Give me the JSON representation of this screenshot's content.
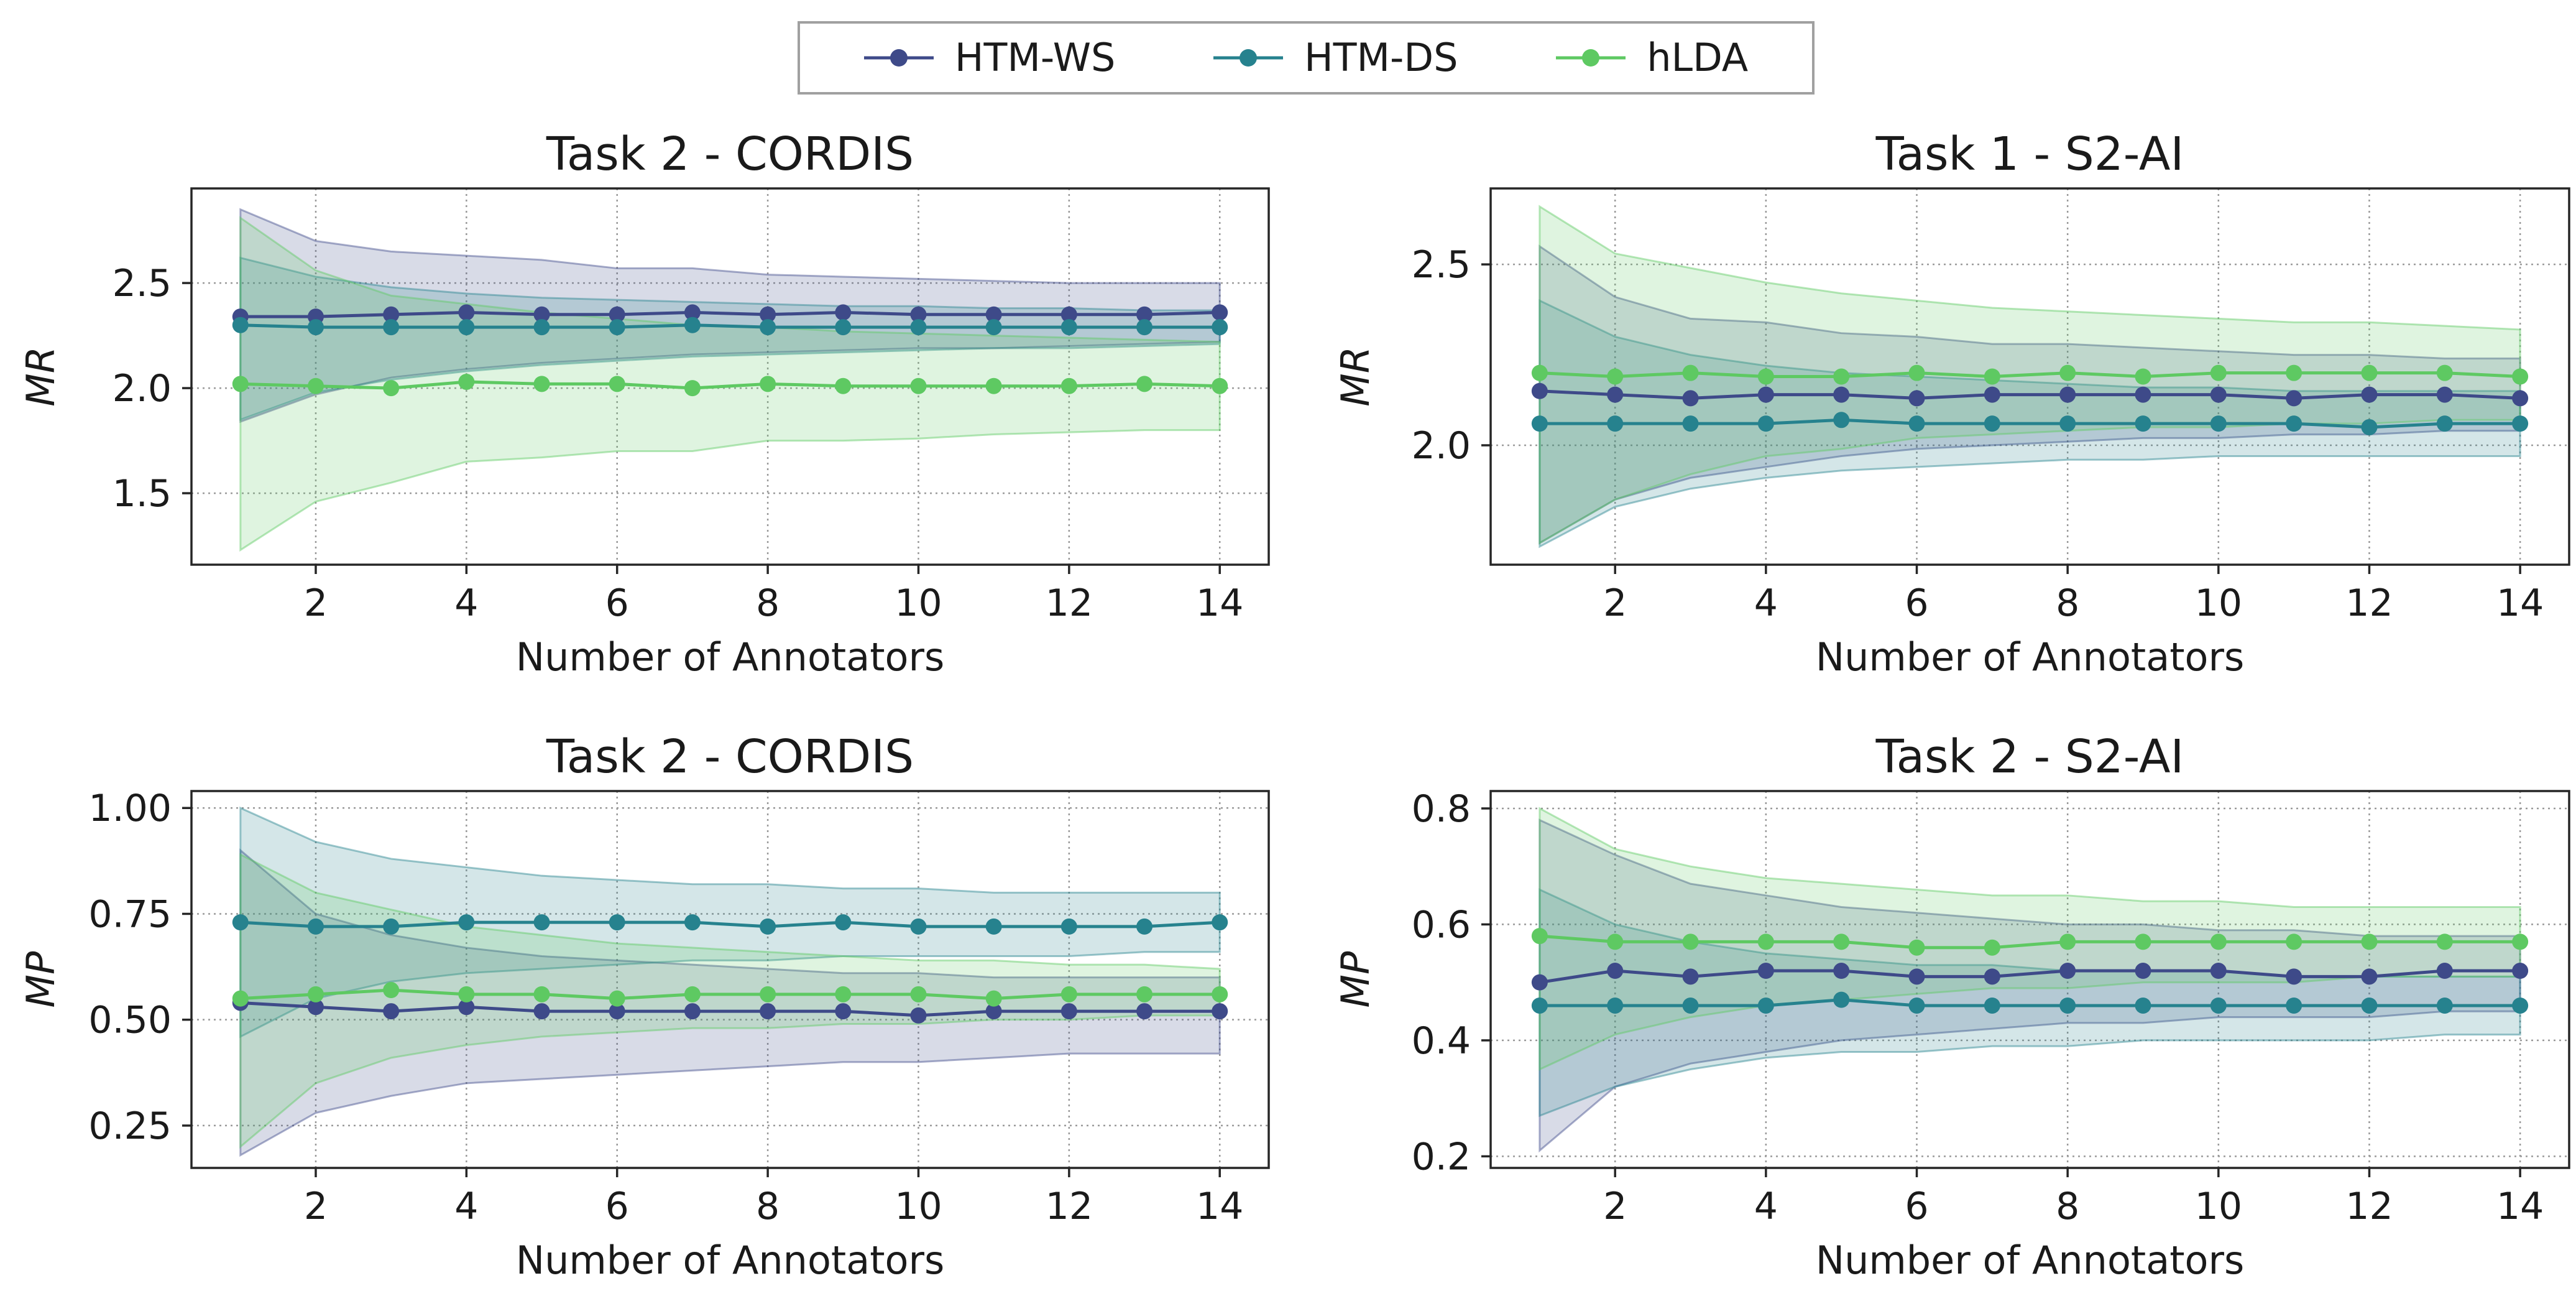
{
  "legend": [
    {
      "label": "HTM-WS",
      "color": "#3e4a89"
    },
    {
      "label": "HTM-DS",
      "color": "#26828e"
    },
    {
      "label": "hLDA",
      "color": "#5ec962"
    }
  ],
  "chart_data": [
    {
      "type": "line",
      "title": "Task 2 - CORDIS",
      "xlabel": "Number of Annotators",
      "ylabel": "MR",
      "xlim": [
        0.35,
        14.65
      ],
      "ylim": [
        1.16,
        2.95
      ],
      "xticks": [
        2,
        4,
        6,
        8,
        10,
        12,
        14
      ],
      "yticks": [
        "1.5",
        "2.0",
        "2.5"
      ],
      "grid": true,
      "x": [
        1,
        2,
        3,
        4,
        5,
        6,
        7,
        8,
        9,
        10,
        11,
        12,
        13,
        14
      ],
      "series": [
        {
          "name": "HTM-WS",
          "color": "#3e4a89",
          "values": [
            2.34,
            2.34,
            2.35,
            2.36,
            2.35,
            2.35,
            2.36,
            2.35,
            2.36,
            2.35,
            2.35,
            2.35,
            2.35,
            2.36
          ],
          "lower": [
            1.84,
            1.97,
            2.05,
            2.09,
            2.12,
            2.14,
            2.16,
            2.17,
            2.18,
            2.19,
            2.19,
            2.2,
            2.21,
            2.22
          ],
          "upper": [
            2.85,
            2.7,
            2.65,
            2.63,
            2.61,
            2.57,
            2.57,
            2.54,
            2.53,
            2.52,
            2.51,
            2.5,
            2.5,
            2.5
          ]
        },
        {
          "name": "HTM-DS",
          "color": "#26828e",
          "values": [
            2.3,
            2.29,
            2.29,
            2.29,
            2.29,
            2.29,
            2.3,
            2.29,
            2.29,
            2.29,
            2.29,
            2.29,
            2.29,
            2.29
          ],
          "lower": [
            1.85,
            1.98,
            2.04,
            2.08,
            2.11,
            2.13,
            2.15,
            2.16,
            2.17,
            2.18,
            2.19,
            2.19,
            2.2,
            2.21
          ],
          "upper": [
            2.62,
            2.53,
            2.48,
            2.45,
            2.43,
            2.42,
            2.41,
            2.4,
            2.39,
            2.39,
            2.38,
            2.38,
            2.37,
            2.37
          ]
        },
        {
          "name": "hLDA",
          "color": "#5ec962",
          "values": [
            2.02,
            2.01,
            2.0,
            2.03,
            2.02,
            2.02,
            2.0,
            2.02,
            2.01,
            2.01,
            2.01,
            2.01,
            2.02,
            2.01
          ],
          "lower": [
            1.23,
            1.46,
            1.55,
            1.65,
            1.67,
            1.7,
            1.7,
            1.75,
            1.75,
            1.76,
            1.78,
            1.79,
            1.8,
            1.8
          ],
          "upper": [
            2.81,
            2.56,
            2.44,
            2.4,
            2.36,
            2.33,
            2.3,
            2.29,
            2.27,
            2.26,
            2.25,
            2.24,
            2.23,
            2.22
          ]
        }
      ]
    },
    {
      "type": "line",
      "title": "Task 1 - S2-AI",
      "xlabel": "Number of Annotators",
      "ylabel": "MR",
      "xlim": [
        0.35,
        14.65
      ],
      "ylim": [
        1.67,
        2.71
      ],
      "xticks": [
        2,
        4,
        6,
        8,
        10,
        12,
        14
      ],
      "yticks": [
        "2.0",
        "2.5"
      ],
      "grid": true,
      "x": [
        1,
        2,
        3,
        4,
        5,
        6,
        7,
        8,
        9,
        10,
        11,
        12,
        13,
        14
      ],
      "series": [
        {
          "name": "HTM-WS",
          "color": "#3e4a89",
          "values": [
            2.15,
            2.14,
            2.13,
            2.14,
            2.14,
            2.13,
            2.14,
            2.14,
            2.14,
            2.14,
            2.13,
            2.14,
            2.14,
            2.13
          ],
          "lower": [
            1.73,
            1.85,
            1.91,
            1.94,
            1.97,
            1.99,
            2.0,
            2.01,
            2.02,
            2.02,
            2.03,
            2.03,
            2.04,
            2.04
          ],
          "upper": [
            2.55,
            2.41,
            2.35,
            2.34,
            2.31,
            2.3,
            2.28,
            2.28,
            2.27,
            2.26,
            2.25,
            2.25,
            2.24,
            2.24
          ]
        },
        {
          "name": "HTM-DS",
          "color": "#26828e",
          "values": [
            2.06,
            2.06,
            2.06,
            2.06,
            2.07,
            2.06,
            2.06,
            2.06,
            2.06,
            2.06,
            2.06,
            2.05,
            2.06,
            2.06
          ],
          "lower": [
            1.72,
            1.83,
            1.88,
            1.91,
            1.93,
            1.94,
            1.95,
            1.96,
            1.96,
            1.97,
            1.97,
            1.97,
            1.97,
            1.97
          ],
          "upper": [
            2.4,
            2.3,
            2.25,
            2.22,
            2.2,
            2.19,
            2.18,
            2.17,
            2.16,
            2.16,
            2.15,
            2.15,
            2.15,
            2.15
          ]
        },
        {
          "name": "hLDA",
          "color": "#5ec962",
          "values": [
            2.2,
            2.19,
            2.2,
            2.19,
            2.19,
            2.2,
            2.19,
            2.2,
            2.19,
            2.2,
            2.2,
            2.2,
            2.2,
            2.19
          ],
          "lower": [
            1.73,
            1.85,
            1.92,
            1.97,
            1.99,
            2.02,
            2.03,
            2.04,
            2.05,
            2.05,
            2.06,
            2.06,
            2.07,
            2.07
          ],
          "upper": [
            2.66,
            2.53,
            2.49,
            2.45,
            2.42,
            2.4,
            2.38,
            2.37,
            2.36,
            2.35,
            2.34,
            2.34,
            2.33,
            2.32
          ]
        }
      ]
    },
    {
      "type": "line",
      "title": "Task 2 - CORDIS",
      "xlabel": "Number of Annotators",
      "ylabel": "MP",
      "xlim": [
        0.35,
        14.65
      ],
      "ylim": [
        0.15,
        1.04
      ],
      "xticks": [
        2,
        4,
        6,
        8,
        10,
        12,
        14
      ],
      "yticks": [
        "0.25",
        "0.50",
        "0.75",
        "1.00"
      ],
      "grid": true,
      "x": [
        1,
        2,
        3,
        4,
        5,
        6,
        7,
        8,
        9,
        10,
        11,
        12,
        13,
        14
      ],
      "series": [
        {
          "name": "HTM-WS",
          "color": "#3e4a89",
          "values": [
            0.54,
            0.53,
            0.52,
            0.53,
            0.52,
            0.52,
            0.52,
            0.52,
            0.52,
            0.51,
            0.52,
            0.52,
            0.52,
            0.52
          ],
          "lower": [
            0.18,
            0.28,
            0.32,
            0.35,
            0.36,
            0.37,
            0.38,
            0.39,
            0.4,
            0.4,
            0.41,
            0.42,
            0.42,
            0.42
          ],
          "upper": [
            0.9,
            0.75,
            0.7,
            0.67,
            0.65,
            0.64,
            0.63,
            0.62,
            0.61,
            0.61,
            0.6,
            0.6,
            0.6,
            0.6
          ]
        },
        {
          "name": "HTM-DS",
          "color": "#26828e",
          "values": [
            0.73,
            0.72,
            0.72,
            0.73,
            0.73,
            0.73,
            0.73,
            0.72,
            0.73,
            0.72,
            0.72,
            0.72,
            0.72,
            0.73
          ],
          "lower": [
            0.46,
            0.55,
            0.59,
            0.61,
            0.62,
            0.63,
            0.64,
            0.64,
            0.65,
            0.65,
            0.65,
            0.65,
            0.66,
            0.66
          ],
          "upper": [
            1.0,
            0.92,
            0.88,
            0.86,
            0.84,
            0.83,
            0.82,
            0.82,
            0.81,
            0.81,
            0.8,
            0.8,
            0.8,
            0.8
          ]
        },
        {
          "name": "hLDA",
          "color": "#5ec962",
          "values": [
            0.55,
            0.56,
            0.57,
            0.56,
            0.56,
            0.55,
            0.56,
            0.56,
            0.56,
            0.56,
            0.55,
            0.56,
            0.56,
            0.56
          ],
          "lower": [
            0.2,
            0.35,
            0.41,
            0.44,
            0.46,
            0.47,
            0.48,
            0.48,
            0.49,
            0.49,
            0.5,
            0.5,
            0.51,
            0.51
          ],
          "upper": [
            0.89,
            0.8,
            0.76,
            0.72,
            0.7,
            0.68,
            0.67,
            0.66,
            0.65,
            0.64,
            0.64,
            0.63,
            0.63,
            0.62
          ]
        }
      ]
    },
    {
      "type": "line",
      "title": "Task 2 - S2-AI",
      "xlabel": "Number of Annotators",
      "ylabel": "MP",
      "xlim": [
        0.35,
        14.65
      ],
      "ylim": [
        0.18,
        0.83
      ],
      "xticks": [
        2,
        4,
        6,
        8,
        10,
        12,
        14
      ],
      "yticks": [
        "0.2",
        "0.4",
        "0.6",
        "0.8"
      ],
      "grid": true,
      "x": [
        1,
        2,
        3,
        4,
        5,
        6,
        7,
        8,
        9,
        10,
        11,
        12,
        13,
        14
      ],
      "series": [
        {
          "name": "HTM-WS",
          "color": "#3e4a89",
          "values": [
            0.5,
            0.52,
            0.51,
            0.52,
            0.52,
            0.51,
            0.51,
            0.52,
            0.52,
            0.52,
            0.51,
            0.51,
            0.52,
            0.52
          ],
          "lower": [
            0.21,
            0.32,
            0.36,
            0.38,
            0.4,
            0.41,
            0.42,
            0.43,
            0.43,
            0.44,
            0.44,
            0.44,
            0.45,
            0.45
          ],
          "upper": [
            0.78,
            0.72,
            0.67,
            0.65,
            0.63,
            0.62,
            0.61,
            0.6,
            0.6,
            0.59,
            0.59,
            0.58,
            0.58,
            0.58
          ]
        },
        {
          "name": "HTM-DS",
          "color": "#26828e",
          "values": [
            0.46,
            0.46,
            0.46,
            0.46,
            0.47,
            0.46,
            0.46,
            0.46,
            0.46,
            0.46,
            0.46,
            0.46,
            0.46,
            0.46
          ],
          "lower": [
            0.27,
            0.32,
            0.35,
            0.37,
            0.38,
            0.38,
            0.39,
            0.39,
            0.4,
            0.4,
            0.4,
            0.4,
            0.41,
            0.41
          ],
          "upper": [
            0.66,
            0.6,
            0.57,
            0.55,
            0.54,
            0.53,
            0.53,
            0.52,
            0.52,
            0.52,
            0.51,
            0.51,
            0.51,
            0.51
          ]
        },
        {
          "name": "hLDA",
          "color": "#5ec962",
          "values": [
            0.58,
            0.57,
            0.57,
            0.57,
            0.57,
            0.56,
            0.56,
            0.57,
            0.57,
            0.57,
            0.57,
            0.57,
            0.57,
            0.57
          ],
          "lower": [
            0.35,
            0.41,
            0.44,
            0.46,
            0.47,
            0.48,
            0.49,
            0.49,
            0.5,
            0.5,
            0.5,
            0.51,
            0.51,
            0.51
          ],
          "upper": [
            0.8,
            0.73,
            0.7,
            0.68,
            0.67,
            0.66,
            0.65,
            0.65,
            0.64,
            0.64,
            0.63,
            0.63,
            0.63,
            0.63
          ]
        }
      ]
    }
  ]
}
